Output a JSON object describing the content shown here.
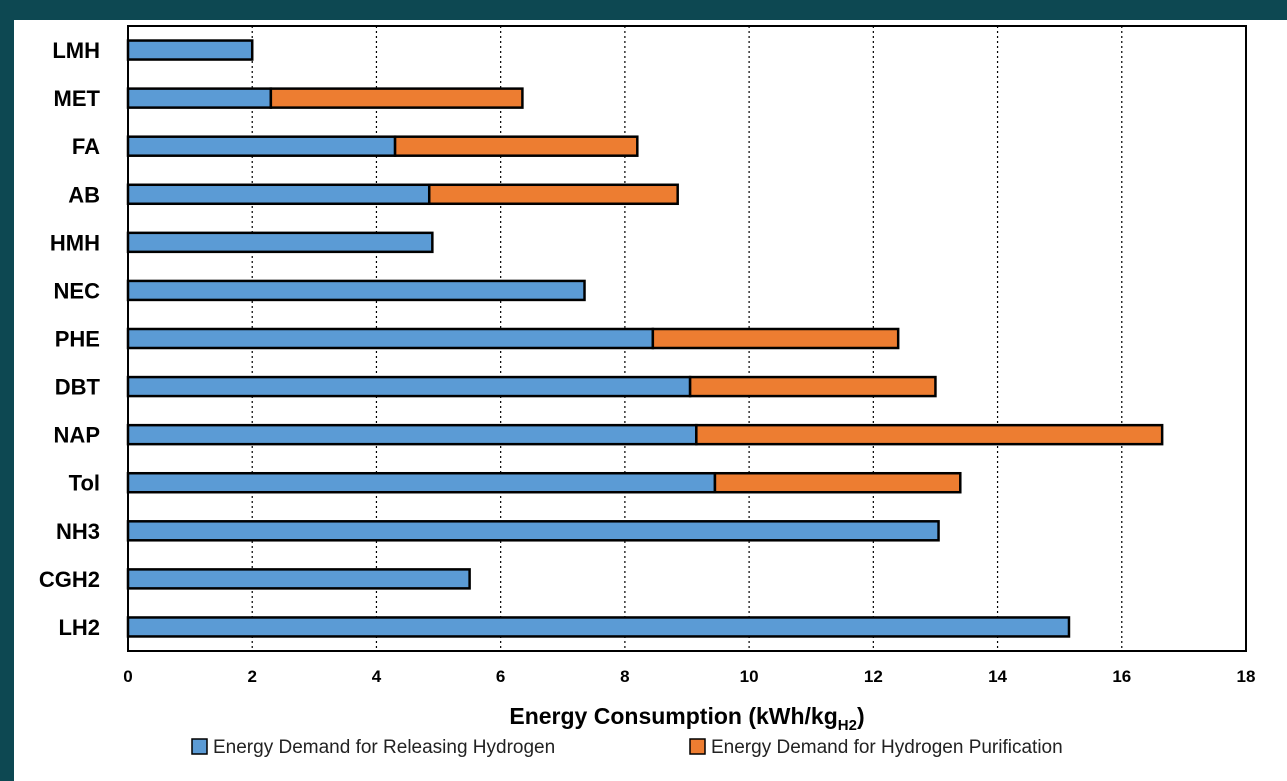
{
  "chart_data": {
    "type": "bar",
    "orientation": "horizontal",
    "stacked": true,
    "categories": [
      "LMH",
      "MET",
      "FA",
      "AB",
      "HMH",
      "NEC",
      "PHE",
      "DBT",
      "NAP",
      "Tol",
      "NH3",
      "CGH2",
      "LH2"
    ],
    "series": [
      {
        "name": "Energy Demand for Releasing Hydrogen",
        "color": "#5b9bd5",
        "values": [
          2.0,
          2.3,
          4.3,
          4.85,
          4.9,
          7.35,
          8.45,
          9.05,
          9.15,
          9.45,
          13.05,
          5.5,
          15.15
        ]
      },
      {
        "name": "Energy Demand for Hydrogen Purification",
        "color": "#ed7d31",
        "values": [
          0,
          4.05,
          3.9,
          4.0,
          0,
          0,
          3.95,
          3.95,
          7.5,
          3.95,
          0,
          0,
          0
        ]
      }
    ],
    "xlabel_main": "Energy Consumption (kWh/kg",
    "xlabel_sub": "H2",
    "xlabel_close": ")",
    "xlim": [
      0,
      18
    ],
    "xticks": [
      0,
      2,
      4,
      6,
      8,
      10,
      12,
      14,
      16,
      18
    ],
    "grid": "vertical-dotted",
    "legend_position": "bottom"
  }
}
